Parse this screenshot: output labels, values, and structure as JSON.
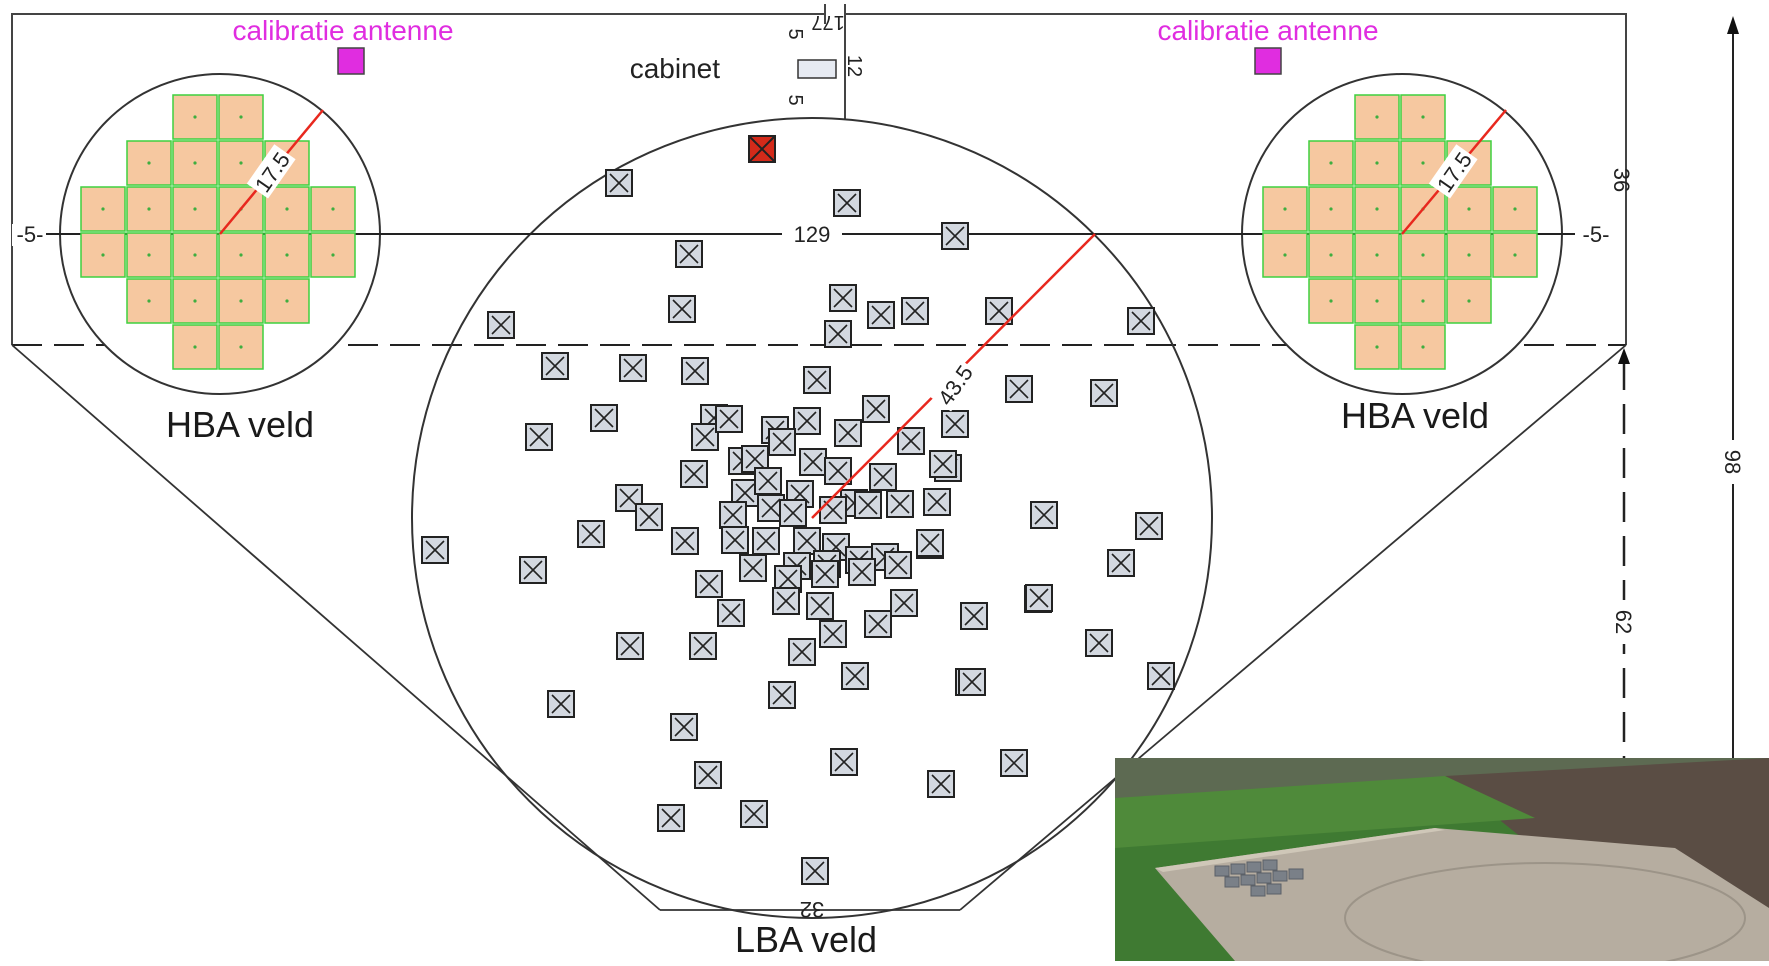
{
  "labels": {
    "hba_left": "HBA veld",
    "hba_right": "HBA veld",
    "lba": "LBA veld",
    "cal_left": "calibratie antenne",
    "cal_right": "calibratie antenne",
    "cabinet": "cabinet"
  },
  "dimensions": {
    "width_129": "129",
    "radius_lba": "43.5",
    "radius_hba_left": "17.5",
    "radius_hba_right": "17.5",
    "left_5": "-5-",
    "right_5": "-5-",
    "top_36": "36",
    "total_98": "98",
    "lower_62": "62",
    "bottom_32": "32",
    "cab_177": "177",
    "cab_5a": "5",
    "cab_12": "12",
    "cab_5b": "5"
  },
  "colors": {
    "hba_tile_fill": "#f6c8a0",
    "hba_tile_stroke": "#3fd03f",
    "calibration": "#e02de0",
    "red_antenna": "#d42a1a",
    "radius_line": "#e8281e",
    "lba_antenna_fill": "#d3d8e0",
    "outline": "#333333"
  },
  "photo": {
    "description_icon": "aerial-photo-icon"
  }
}
